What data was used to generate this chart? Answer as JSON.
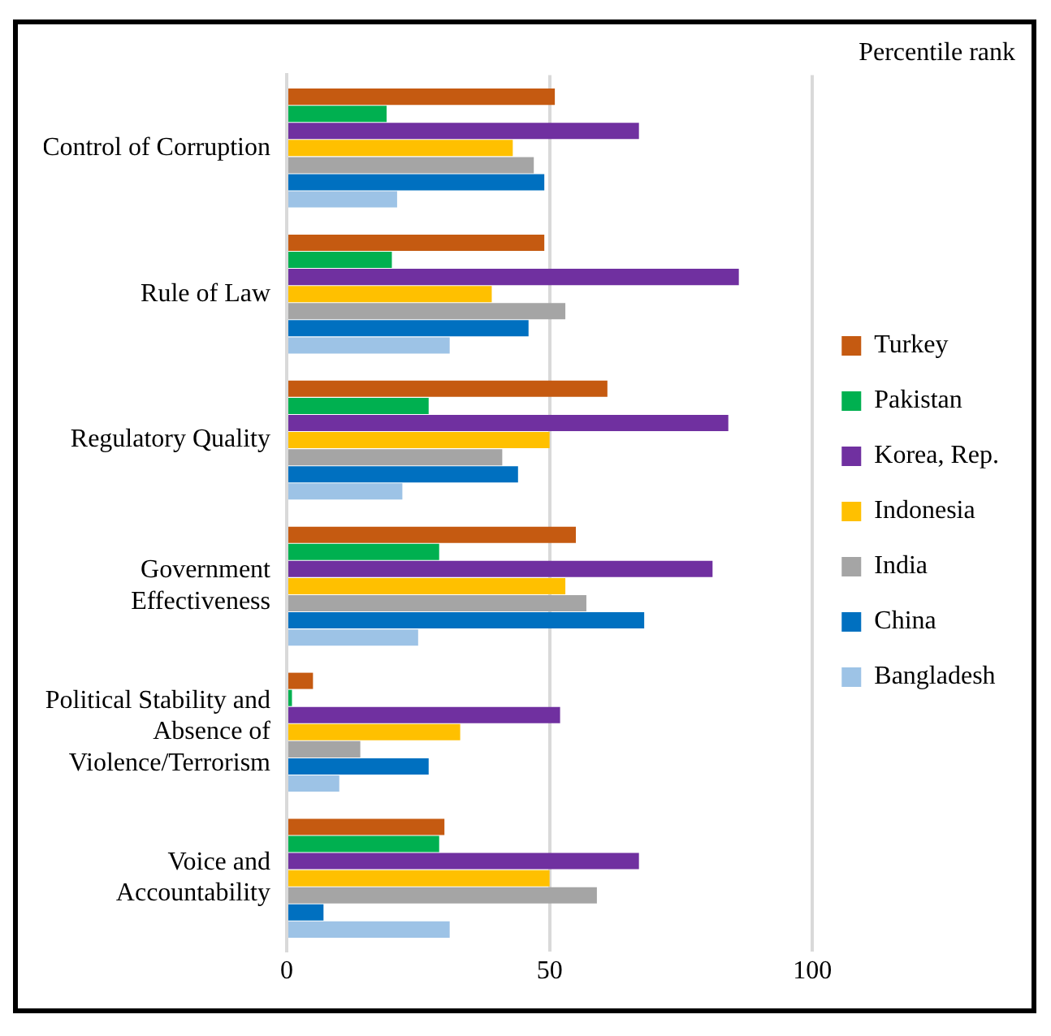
{
  "chart_data": {
    "type": "bar",
    "orientation": "horizontal",
    "title": "Percentile rank",
    "categories": [
      "Control of Corruption",
      "Rule of Law",
      "Regulatory Quality",
      "Government Effectiveness",
      "Political Stability and Absence of Violence/Terrorism",
      "Voice and Accountability"
    ],
    "series": [
      {
        "name": "Turkey",
        "color": "#c55a11",
        "values": [
          51,
          49,
          61,
          55,
          5,
          30
        ]
      },
      {
        "name": "Pakistan",
        "color": "#00b050",
        "values": [
          19,
          20,
          27,
          29,
          1,
          29
        ]
      },
      {
        "name": "Korea, Rep.",
        "color": "#7030a0",
        "values": [
          67,
          86,
          84,
          81,
          52,
          67
        ]
      },
      {
        "name": "Indonesia",
        "color": "#ffc000",
        "values": [
          43,
          39,
          50,
          53,
          33,
          50
        ]
      },
      {
        "name": "India",
        "color": "#a5a5a5",
        "values": [
          47,
          53,
          41,
          57,
          14,
          59
        ]
      },
      {
        "name": "China",
        "color": "#0070c0",
        "values": [
          49,
          46,
          44,
          68,
          27,
          7
        ]
      },
      {
        "name": "Bangladesh",
        "color": "#9dc3e6",
        "values": [
          21,
          31,
          22,
          25,
          10,
          31
        ]
      }
    ],
    "xlim": [
      0,
      100
    ],
    "xticks": [
      0,
      50,
      100
    ],
    "grid": "x",
    "legend": "right"
  }
}
